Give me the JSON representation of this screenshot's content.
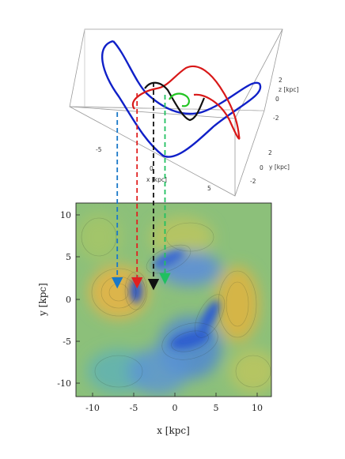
{
  "chart_data": [
    {
      "type": "line",
      "projection": "3d",
      "title": "",
      "xlabel": "x [kpc]",
      "ylabel": "y [kpc]",
      "zlabel": "z [kpc]",
      "x_ticks": [
        "-5",
        "0",
        "5"
      ],
      "y_ticks": [
        "2",
        "0",
        "-2"
      ],
      "z_ticks": [
        "2",
        "0",
        "-2"
      ],
      "grid": false,
      "series": [
        {
          "color": "#1020c8",
          "role": "blue orbit"
        },
        {
          "color": "#d81818",
          "role": "red orbit"
        },
        {
          "color": "#000000",
          "role": "black orbit"
        },
        {
          "color": "#22c422",
          "role": "green orbit"
        }
      ],
      "projection_arrows": [
        {
          "color": "#1a78c8",
          "x": -7.0,
          "y": 1.4
        },
        {
          "color": "#e02020",
          "x": -4.6,
          "y": 1.4
        },
        {
          "color": "#111111",
          "x": -2.6,
          "y": 1.2
        },
        {
          "color": "#20c060",
          "x": -1.2,
          "y": 1.9
        }
      ]
    },
    {
      "type": "heatmap",
      "title": "",
      "xlabel": "x [kpc]",
      "ylabel": "y [kpc]",
      "xlim": [
        -12,
        11.5
      ],
      "ylim": [
        -12,
        11.5
      ],
      "x_ticks": [
        "-10",
        "-5",
        "0",
        "5",
        "10"
      ],
      "y_ticks": [
        "10",
        "5",
        "0",
        "-5",
        "-10"
      ],
      "colormap": [
        "#2f5fcf",
        "#4d89d6",
        "#5fb2b4",
        "#86c07a",
        "#b9c957",
        "#e8b143"
      ],
      "grid": false,
      "markers": [
        {
          "color": "#1a78c8",
          "x": -7.0,
          "y": 1.4
        },
        {
          "color": "#e02020",
          "x": -4.6,
          "y": 1.4
        },
        {
          "color": "#111111",
          "x": -2.6,
          "y": 1.2
        },
        {
          "color": "#20c060",
          "x": -1.2,
          "y": 1.9
        }
      ]
    }
  ]
}
